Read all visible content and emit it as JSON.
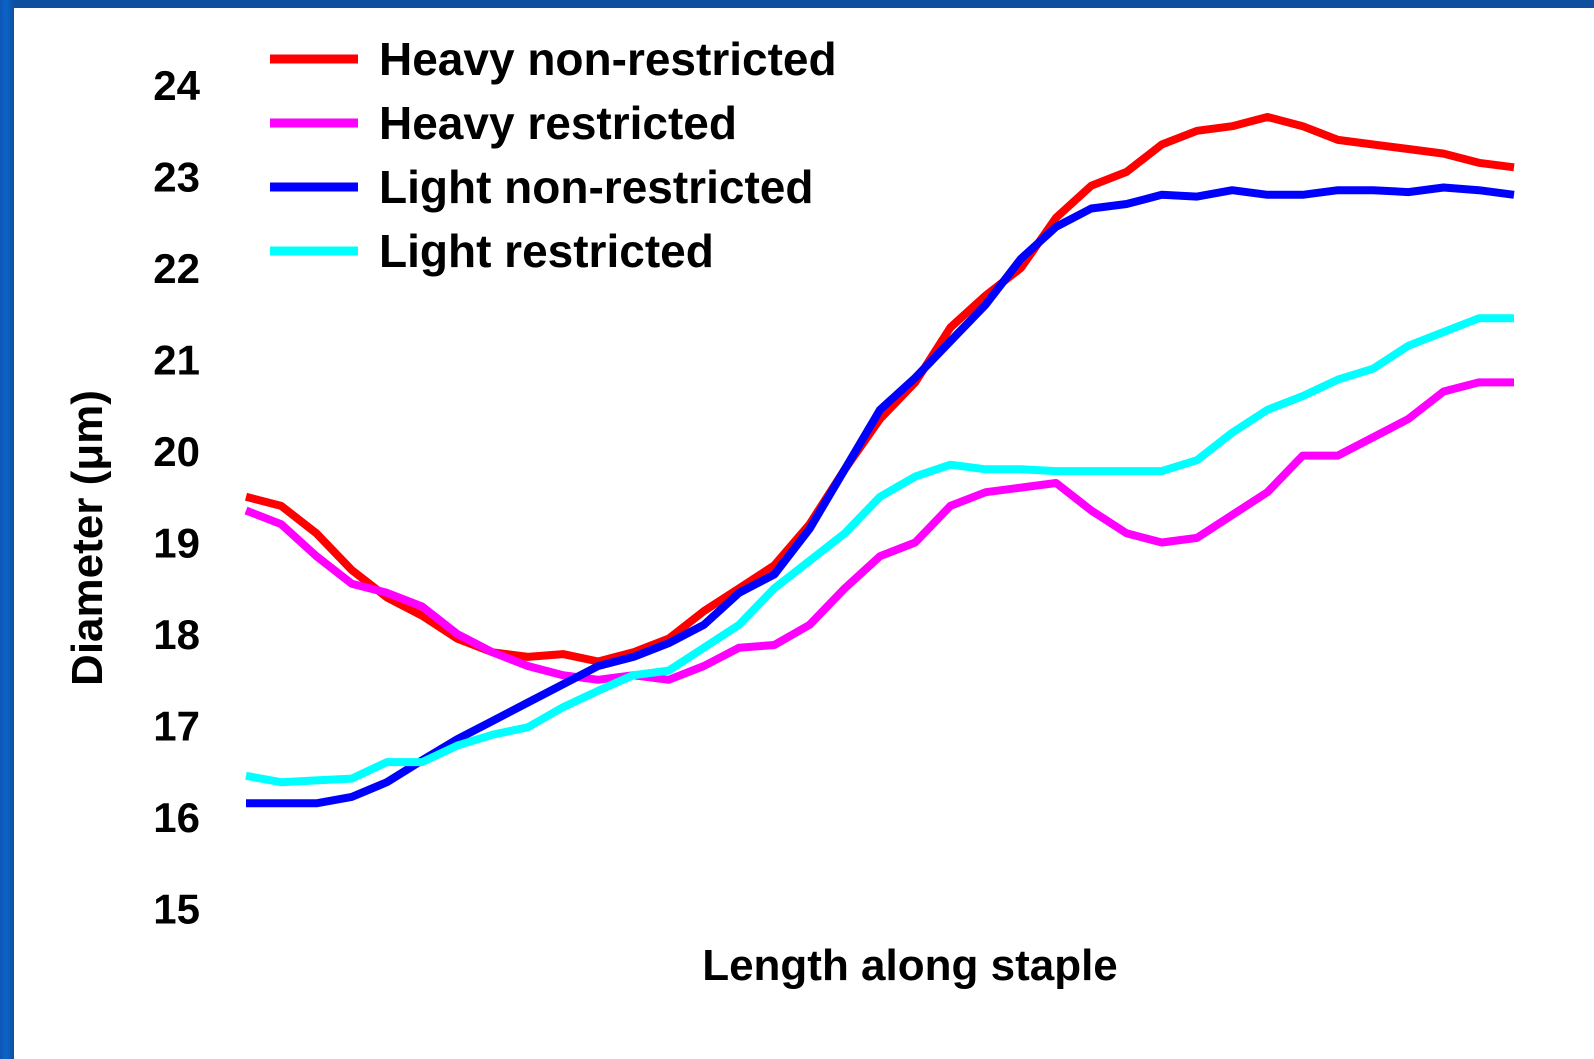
{
  "chart_data": {
    "type": "line",
    "title": "",
    "xlabel": "Length along staple",
    "ylabel": "Diameter (μm)",
    "ylim": [
      15,
      24.5
    ],
    "y_ticks": [
      "15",
      "16",
      "17",
      "18",
      "19",
      "20",
      "21",
      "22",
      "23",
      "24"
    ],
    "grid": false,
    "legend_position": "top-left",
    "x": [
      1,
      2,
      3,
      4,
      5,
      6,
      7,
      8,
      9,
      10,
      11,
      12,
      13,
      14,
      15,
      16,
      17,
      18,
      19,
      20,
      21,
      22,
      23,
      24,
      25,
      26,
      27,
      28,
      29,
      30,
      31,
      32,
      33,
      34,
      35,
      36,
      37
    ],
    "series": [
      {
        "name": "Heavy non-restricted",
        "color": "#ff0000",
        "values": [
          19.5,
          19.4,
          19.1,
          18.7,
          18.4,
          18.2,
          17.95,
          17.8,
          17.75,
          17.78,
          17.7,
          17.8,
          17.95,
          18.25,
          18.5,
          18.75,
          19.2,
          19.8,
          20.35,
          20.75,
          21.35,
          21.7,
          22.0,
          22.55,
          22.9,
          23.05,
          23.35,
          23.5,
          23.55,
          23.65,
          23.55,
          23.4,
          23.35,
          23.3,
          23.25,
          23.15,
          23.1
        ]
      },
      {
        "name": "Heavy restricted",
        "color": "#ff00ff",
        "values": [
          19.35,
          19.2,
          18.85,
          18.55,
          18.45,
          18.3,
          18.0,
          17.8,
          17.65,
          17.55,
          17.5,
          17.55,
          17.5,
          17.65,
          17.85,
          17.88,
          18.1,
          18.5,
          18.85,
          19.0,
          19.4,
          19.55,
          19.6,
          19.65,
          19.35,
          19.1,
          19.0,
          19.05,
          19.3,
          19.55,
          19.95,
          19.95,
          20.15,
          20.35,
          20.65,
          20.75,
          20.75
        ]
      },
      {
        "name": "Light non-restricted",
        "color": "#0000ff",
        "values": [
          16.15,
          16.15,
          16.15,
          16.22,
          16.38,
          16.62,
          16.85,
          17.05,
          17.25,
          17.45,
          17.65,
          17.75,
          17.9,
          18.1,
          18.45,
          18.65,
          19.15,
          19.8,
          20.45,
          20.8,
          21.2,
          21.6,
          22.1,
          22.45,
          22.65,
          22.7,
          22.8,
          22.78,
          22.85,
          22.8,
          22.8,
          22.85,
          22.85,
          22.83,
          22.88,
          22.85,
          22.8
        ]
      },
      {
        "name": "Light restricted",
        "color": "#00ffff",
        "values": [
          16.45,
          16.38,
          16.4,
          16.42,
          16.6,
          16.6,
          16.78,
          16.9,
          16.98,
          17.2,
          17.38,
          17.55,
          17.6,
          17.85,
          18.1,
          18.5,
          18.8,
          19.1,
          19.5,
          19.72,
          19.85,
          19.8,
          19.8,
          19.78,
          19.78,
          19.78,
          19.78,
          19.9,
          20.2,
          20.45,
          20.6,
          20.78,
          20.9,
          21.15,
          21.3,
          21.45,
          21.45
        ]
      }
    ]
  }
}
